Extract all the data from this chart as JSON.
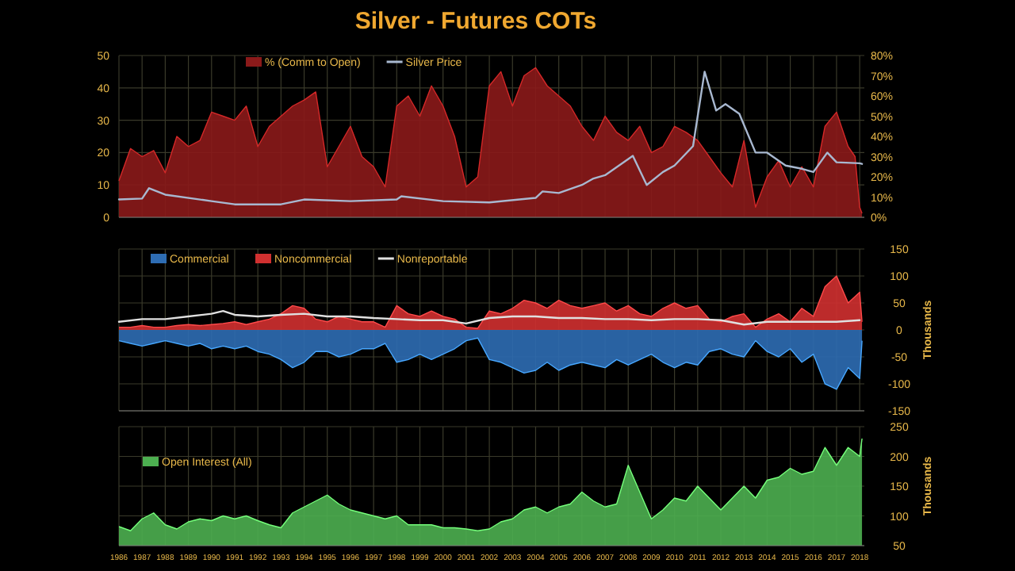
{
  "chart_data": [
    {
      "type": "area",
      "title": "Silver - Futures COTs",
      "xlim": [
        1986,
        2018.2
      ],
      "xticks": [
        1986,
        1987,
        1988,
        1989,
        1990,
        1991,
        1992,
        1993,
        1994,
        1995,
        1996,
        1997,
        1998,
        1999,
        2000,
        2001,
        2002,
        2003,
        2004,
        2005,
        2006,
        2007,
        2008,
        2009,
        2010,
        2011,
        2012,
        2013,
        2014,
        2015,
        2016,
        2017,
        2018
      ],
      "ylim": [
        0,
        50
      ],
      "yticks": [
        0,
        10,
        20,
        30,
        40,
        50
      ],
      "y2lim": [
        0,
        80
      ],
      "y2ticks": [
        {
          "value": 0,
          "label": "0%"
        },
        {
          "value": 10,
          "label": "10%"
        },
        {
          "value": 20,
          "label": "20%"
        },
        {
          "value": 30,
          "label": "30%"
        },
        {
          "value": 40,
          "label": "40%"
        },
        {
          "value": 50,
          "label": "50%"
        },
        {
          "value": 60,
          "label": "60%"
        },
        {
          "value": 70,
          "label": "70%"
        },
        {
          "value": 80,
          "label": "80%"
        }
      ],
      "grid": true,
      "legend": "top",
      "tick_labels": "y",
      "series": [
        {
          "name": "% (Comm to Open)",
          "axis": "y2",
          "color": "#8b1a1a",
          "x": [
            1986,
            1986.5,
            1987,
            1987.5,
            1988,
            1988.5,
            1989,
            1989.5,
            1990,
            1990.5,
            1991,
            1991.5,
            1992,
            1992.5,
            1993,
            1993.5,
            1994,
            1994.5,
            1995,
            1995.5,
            1996,
            1996.5,
            1997,
            1997.5,
            1998,
            1998.5,
            1999,
            1999.5,
            2000,
            2000.5,
            2001,
            2001.5,
            2002,
            2002.5,
            2003,
            2003.5,
            2004,
            2004.5,
            2005,
            2005.5,
            2006,
            2006.5,
            2007,
            2007.5,
            2008,
            2008.5,
            2009,
            2009.5,
            2010,
            2010.5,
            2011,
            2011.5,
            2012,
            2012.5,
            2013,
            2013.5,
            2014,
            2014.5,
            2015,
            2015.5,
            2016,
            2016.5,
            2017,
            2017.5,
            2017.8,
            2018,
            2018.1
          ],
          "values": [
            18,
            34,
            30,
            33,
            22,
            40,
            35,
            38,
            52,
            50,
            48,
            55,
            35,
            45,
            50,
            55,
            58,
            62,
            25,
            35,
            45,
            30,
            25,
            15,
            55,
            60,
            50,
            65,
            55,
            40,
            15,
            20,
            65,
            72,
            55,
            70,
            74,
            65,
            60,
            55,
            45,
            38,
            50,
            42,
            38,
            45,
            32,
            35,
            45,
            42,
            38,
            30,
            22,
            15,
            38,
            5,
            20,
            28,
            15,
            25,
            15,
            45,
            52,
            35,
            30,
            5,
            2
          ]
        },
        {
          "name": "Silver Price",
          "type": "line",
          "axis": "y",
          "color": "#a8b8d0",
          "x": [
            1986,
            1987,
            1987.3,
            1988,
            1990,
            1991,
            1993,
            1994,
            1996,
            1998,
            1998.2,
            2000,
            2002,
            2004,
            2004.3,
            2005,
            2006,
            2006.5,
            2007,
            2008.2,
            2008.8,
            2009.5,
            2010,
            2010.8,
            2011.3,
            2011.8,
            2012.2,
            2012.8,
            2013.5,
            2014,
            2014.8,
            2015.5,
            2016,
            2016.6,
            2017,
            2018,
            2018.1
          ],
          "values": [
            5.5,
            5.8,
            9,
            7,
            5,
            4,
            4,
            5.5,
            5,
            5.5,
            6.5,
            5,
            4.6,
            6,
            8,
            7.5,
            10,
            12,
            13,
            19,
            10,
            14,
            16,
            22,
            45,
            33,
            35,
            32,
            20,
            20,
            16,
            15,
            14,
            20,
            17,
            16.7,
            16.5
          ]
        }
      ]
    },
    {
      "type": "area",
      "xlim": [
        1986,
        2018.2
      ],
      "xticks": [
        1986,
        1987,
        1988,
        1989,
        1990,
        1991,
        1992,
        1993,
        1994,
        1995,
        1996,
        1997,
        1998,
        1999,
        2000,
        2001,
        2002,
        2003,
        2004,
        2005,
        2006,
        2007,
        2008,
        2009,
        2010,
        2011,
        2012,
        2013,
        2014,
        2015,
        2016,
        2017,
        2018
      ],
      "ylim": [
        -150,
        150
      ],
      "yticks": [
        -150,
        -100,
        -50,
        0,
        50,
        100,
        150
      ],
      "ylabel": "Thousands",
      "grid": true,
      "legend": "top left",
      "tick_labels": "y",
      "series": [
        {
          "name": "Commercial",
          "color": "#2e6db4",
          "x": [
            1986,
            1986.5,
            1987,
            1987.5,
            1988,
            1988.5,
            1989,
            1989.5,
            1990,
            1990.5,
            1991,
            1991.5,
            1992,
            1992.5,
            1993,
            1993.5,
            1994,
            1994.5,
            1995,
            1995.5,
            1996,
            1996.5,
            1997,
            1997.5,
            1998,
            1998.5,
            1999,
            1999.5,
            2000,
            2000.5,
            2001,
            2001.5,
            2002,
            2002.5,
            2003,
            2003.5,
            2004,
            2004.5,
            2005,
            2005.5,
            2006,
            2006.5,
            2007,
            2007.5,
            2008,
            2008.5,
            2009,
            2009.5,
            2010,
            2010.5,
            2011,
            2011.5,
            2012,
            2012.5,
            2013,
            2013.5,
            2014,
            2014.5,
            2015,
            2015.5,
            2016,
            2016.5,
            2017,
            2017.5,
            2018,
            2018.1
          ],
          "values": [
            -20,
            -25,
            -30,
            -25,
            -20,
            -25,
            -30,
            -25,
            -35,
            -30,
            -35,
            -30,
            -40,
            -45,
            -55,
            -70,
            -60,
            -40,
            -40,
            -50,
            -45,
            -35,
            -35,
            -25,
            -60,
            -55,
            -45,
            -55,
            -45,
            -35,
            -20,
            -15,
            -55,
            -60,
            -70,
            -80,
            -75,
            -60,
            -75,
            -65,
            -60,
            -65,
            -70,
            -55,
            -65,
            -55,
            -45,
            -60,
            -70,
            -60,
            -65,
            -40,
            -35,
            -45,
            -50,
            -20,
            -40,
            -50,
            -35,
            -60,
            -45,
            -100,
            -110,
            -70,
            -90,
            -20
          ]
        },
        {
          "name": "Noncommercial",
          "color": "#d03030",
          "x": [
            1986,
            1986.5,
            1987,
            1987.5,
            1988,
            1988.5,
            1989,
            1989.5,
            1990,
            1990.5,
            1991,
            1991.5,
            1992,
            1992.5,
            1993,
            1993.5,
            1994,
            1994.5,
            1995,
            1995.5,
            1996,
            1996.5,
            1997,
            1997.5,
            1998,
            1998.5,
            1999,
            1999.5,
            2000,
            2000.5,
            2001,
            2001.5,
            2002,
            2002.5,
            2003,
            2003.5,
            2004,
            2004.5,
            2005,
            2005.5,
            2006,
            2006.5,
            2007,
            2007.5,
            2008,
            2008.5,
            2009,
            2009.5,
            2010,
            2010.5,
            2011,
            2011.5,
            2012,
            2012.5,
            2013,
            2013.5,
            2014,
            2014.5,
            2015,
            2015.5,
            2016,
            2016.5,
            2017,
            2017.5,
            2018,
            2018.1
          ],
          "values": [
            5,
            5,
            8,
            5,
            5,
            8,
            10,
            8,
            10,
            12,
            15,
            10,
            15,
            20,
            30,
            45,
            40,
            20,
            15,
            25,
            20,
            15,
            15,
            5,
            45,
            30,
            25,
            35,
            25,
            20,
            5,
            3,
            35,
            30,
            40,
            55,
            50,
            40,
            55,
            45,
            40,
            45,
            50,
            35,
            45,
            30,
            25,
            40,
            50,
            40,
            45,
            20,
            15,
            25,
            30,
            5,
            20,
            30,
            15,
            40,
            25,
            80,
            100,
            50,
            70,
            15
          ]
        },
        {
          "name": "Nonreportable",
          "type": "line",
          "color": "#e0e0e0",
          "x": [
            1986,
            1987,
            1988,
            1989,
            1990,
            1990.5,
            1991,
            1992,
            1993,
            1994,
            1995,
            1996,
            1997,
            1998,
            1999,
            2000,
            2001,
            2002,
            2003,
            2004,
            2005,
            2006,
            2007,
            2008,
            2009,
            2010,
            2011,
            2012,
            2013,
            2014,
            2015,
            2016,
            2017,
            2018
          ],
          "values": [
            15,
            20,
            20,
            25,
            30,
            35,
            28,
            25,
            28,
            30,
            25,
            25,
            22,
            20,
            18,
            18,
            12,
            22,
            25,
            25,
            22,
            22,
            20,
            20,
            18,
            20,
            20,
            18,
            10,
            15,
            15,
            15,
            15,
            18
          ]
        }
      ]
    },
    {
      "type": "area",
      "xlim": [
        1986,
        2018.2
      ],
      "xticks": [
        1986,
        1987,
        1988,
        1989,
        1990,
        1991,
        1992,
        1993,
        1994,
        1995,
        1996,
        1997,
        1998,
        1999,
        2000,
        2001,
        2002,
        2003,
        2004,
        2005,
        2006,
        2007,
        2008,
        2009,
        2010,
        2011,
        2012,
        2013,
        2014,
        2015,
        2016,
        2017,
        2018
      ],
      "ylim": [
        50,
        250
      ],
      "yticks": [
        50,
        100,
        150,
        200,
        250
      ],
      "ylabel": "Thousands",
      "grid": true,
      "legend": "left",
      "series": [
        {
          "name": "Open Interest (All)",
          "color": "#4caf50",
          "x": [
            1986,
            1986.5,
            1987,
            1987.5,
            1988,
            1988.5,
            1989,
            1989.5,
            1990,
            1990.5,
            1991,
            1991.5,
            1992,
            1992.5,
            1993,
            1993.5,
            1994,
            1994.5,
            1995,
            1995.5,
            1996,
            1996.5,
            1997,
            1997.5,
            1998,
            1998.5,
            1999,
            1999.5,
            2000,
            2000.5,
            2001,
            2001.5,
            2002,
            2002.5,
            2003,
            2003.5,
            2004,
            2004.5,
            2005,
            2005.5,
            2006,
            2006.5,
            2007,
            2007.5,
            2008,
            2008.5,
            2009,
            2009.5,
            2010,
            2010.5,
            2011,
            2011.5,
            2012,
            2012.5,
            2013,
            2013.5,
            2014,
            2014.5,
            2015,
            2015.5,
            2016,
            2016.5,
            2017,
            2017.5,
            2018,
            2018.1
          ],
          "values": [
            82,
            75,
            95,
            105,
            85,
            78,
            90,
            95,
            92,
            100,
            95,
            100,
            92,
            85,
            80,
            105,
            115,
            125,
            135,
            120,
            110,
            105,
            100,
            95,
            100,
            85,
            85,
            85,
            80,
            80,
            78,
            75,
            78,
            90,
            95,
            110,
            115,
            105,
            115,
            120,
            140,
            125,
            115,
            120,
            185,
            140,
            95,
            110,
            130,
            125,
            150,
            130,
            110,
            130,
            150,
            130,
            160,
            165,
            180,
            170,
            175,
            215,
            185,
            215,
            200,
            230
          ]
        }
      ]
    }
  ]
}
